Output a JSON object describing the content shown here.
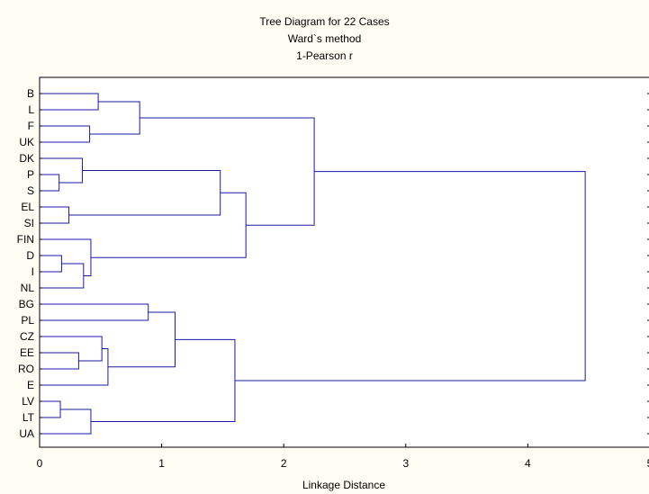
{
  "title": "Tree Diagram for 22 Cases",
  "subtitle1": "Ward`s method",
  "subtitle2": "1-Pearson r",
  "xlabel": "Linkage Distance",
  "xlim": [
    0,
    5
  ],
  "xticks": [
    "0",
    "1",
    "2",
    "3",
    "4",
    "5"
  ],
  "leaves": [
    "B",
    "L",
    "F",
    "UK",
    "DK",
    "P",
    "S",
    "EL",
    "SI",
    "FIN",
    "D",
    "I",
    "NL",
    "BG",
    "PL",
    "CZ",
    "EE",
    "RO",
    "E",
    "LV",
    "LT",
    "UA"
  ],
  "colors": {
    "background": "#fdfdf4",
    "plot_bg": "#ffffff",
    "link": "#1a1aa6",
    "grid": "#cccccc"
  },
  "merges": [
    {
      "a": "B",
      "b": "L",
      "h": 0.48
    },
    {
      "a": "F",
      "b": "UK",
      "h": 0.41
    },
    {
      "a": 0,
      "b": 1,
      "h": 0.82
    },
    {
      "a": "P",
      "b": "S",
      "h": 0.16
    },
    {
      "a": "DK",
      "b": 3,
      "h": 0.35
    },
    {
      "a": "EL",
      "b": "SI",
      "h": 0.24
    },
    {
      "a": 4,
      "b": 5,
      "h": 1.48
    },
    {
      "a": "D",
      "b": "I",
      "h": 0.18
    },
    {
      "a": 7,
      "b": "NL",
      "h": 0.36
    },
    {
      "a": "FIN",
      "b": 8,
      "h": 0.42
    },
    {
      "a": 6,
      "b": 9,
      "h": 1.69
    },
    {
      "a": 2,
      "b": 10,
      "h": 2.25
    },
    {
      "a": "BG",
      "b": "PL",
      "h": 0.89
    },
    {
      "a": "EE",
      "b": "RO",
      "h": 0.32
    },
    {
      "a": "CZ",
      "b": 13,
      "h": 0.51
    },
    {
      "a": 14,
      "b": "E",
      "h": 0.56
    },
    {
      "a": 12,
      "b": 15,
      "h": 1.11
    },
    {
      "a": "LV",
      "b": "LT",
      "h": 0.17
    },
    {
      "a": 17,
      "b": "UA",
      "h": 0.42
    },
    {
      "a": 16,
      "b": 18,
      "h": 1.6
    },
    {
      "a": 11,
      "b": 19,
      "h": 4.47
    }
  ]
}
